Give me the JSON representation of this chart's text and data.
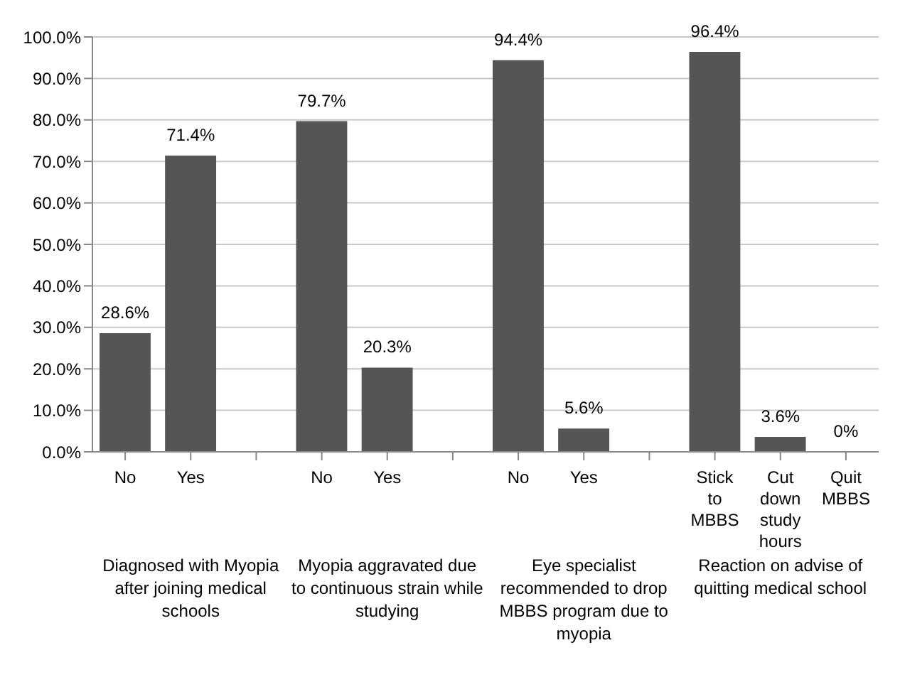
{
  "chart_data": {
    "type": "bar",
    "categories": [
      "No",
      "Yes",
      null,
      "No",
      "Yes",
      null,
      "No",
      "Yes",
      null,
      "Stick to MBBS",
      "Cut down study hours",
      "Quit MBBS"
    ],
    "values": [
      28.6,
      71.4,
      null,
      79.7,
      20.3,
      null,
      94.4,
      5.6,
      null,
      96.4,
      3.6,
      0
    ],
    "value_labels": [
      "28.6%",
      "71.4%",
      null,
      "79.7%",
      "20.3%",
      null,
      "94.4%",
      "5.6%",
      null,
      "96.4%",
      "3.6%",
      "0%"
    ],
    "color": "#555555",
    "ylim": [
      0,
      100
    ],
    "yticks": [
      {
        "value": 0,
        "label": "0.0%"
      },
      {
        "value": 10,
        "label": "10.0%"
      },
      {
        "value": 20,
        "label": "20.0%"
      },
      {
        "value": 30,
        "label": "30.0%"
      },
      {
        "value": 40,
        "label": "40.0%"
      },
      {
        "value": 50,
        "label": "50.0%"
      },
      {
        "value": 60,
        "label": "60.0%"
      },
      {
        "value": 70,
        "label": "70.0%"
      },
      {
        "value": 80,
        "label": "80.0%"
      },
      {
        "value": 90,
        "label": "90.0%"
      },
      {
        "value": 100,
        "label": "100.0%"
      }
    ],
    "grid": "y",
    "annotations": [
      "Diagnosed with Myopia after joining medical schools",
      "Myopia aggravated due to continuous strain while studying",
      "Eye specialist recommended to drop MBBS program due to myopia",
      "Reaction on advise of quitting medical school"
    ]
  }
}
